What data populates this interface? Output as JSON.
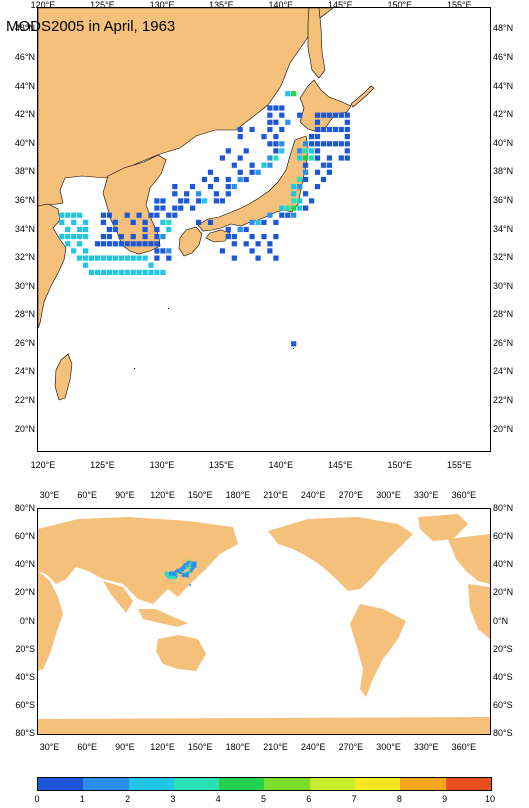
{
  "title": "MODS2005 in April, 1963",
  "colors": {
    "land": "#F5C07A",
    "ocean": "#FFFFFF",
    "palette": [
      "#1C57D8",
      "#2B8FF0",
      "#21C6E6",
      "#2BE0B8",
      "#22D24B",
      "#7CE02A",
      "#C8EA2C",
      "#F4E824",
      "#F6A523",
      "#E8501E"
    ]
  },
  "regional_map": {
    "lon_range": [
      119.5,
      157.5
    ],
    "lat_range": [
      18.5,
      49.5
    ],
    "lon_ticks": [
      "120°E",
      "125°E",
      "130°E",
      "135°E",
      "140°E",
      "145°E",
      "150°E",
      "155°E"
    ],
    "lat_ticks": [
      "20°N",
      "22°N",
      "24°N",
      "26°N",
      "28°N",
      "30°N",
      "32°N",
      "34°N",
      "36°N",
      "38°N",
      "40°N",
      "42°N",
      "44°N",
      "46°N",
      "48°N"
    ]
  },
  "global_map": {
    "lon_range": [
      20,
      380
    ],
    "lat_range": [
      -80,
      80
    ],
    "lon_ticks": [
      "30°E",
      "60°E",
      "90°E",
      "120°E",
      "150°E",
      "180°E",
      "210°E",
      "240°E",
      "270°E",
      "300°E",
      "330°E",
      "360°E"
    ],
    "lat_ticks": [
      "80°S",
      "60°S",
      "40°S",
      "20°S",
      "0°N",
      "20°N",
      "40°N",
      "60°N",
      "80°N"
    ]
  },
  "colorbar": {
    "labels": [
      "0",
      "1",
      "2",
      "3",
      "4",
      "5",
      "6",
      "7",
      "8",
      "9",
      "10"
    ]
  },
  "observation_cells": [
    {
      "lon": 140.5,
      "lat": 43.5,
      "level": 2
    },
    {
      "lon": 141,
      "lat": 43.5,
      "level": 4
    },
    {
      "lon": 139,
      "lat": 42.5,
      "level": 0
    },
    {
      "lon": 139.5,
      "lat": 42.5,
      "level": 0
    },
    {
      "lon": 140,
      "lat": 42.5,
      "level": 0
    },
    {
      "lon": 139,
      "lat": 42,
      "level": 0
    },
    {
      "lon": 140,
      "lat": 42,
      "level": 0
    },
    {
      "lon": 141.5,
      "lat": 42,
      "level": 0
    },
    {
      "lon": 139,
      "lat": 41.5,
      "level": 0
    },
    {
      "lon": 139.5,
      "lat": 41.5,
      "level": 0
    },
    {
      "lon": 140.5,
      "lat": 41.5,
      "level": 1
    },
    {
      "lon": 136.5,
      "lat": 41,
      "level": 0
    },
    {
      "lon": 137.5,
      "lat": 41,
      "level": 0
    },
    {
      "lon": 139,
      "lat": 41,
      "level": 0
    },
    {
      "lon": 140,
      "lat": 41,
      "level": 0
    },
    {
      "lon": 136.5,
      "lat": 40.5,
      "level": 0
    },
    {
      "lon": 138.5,
      "lat": 40.5,
      "level": 0
    },
    {
      "lon": 139.5,
      "lat": 40.5,
      "level": 0
    },
    {
      "lon": 139,
      "lat": 40,
      "level": 0
    },
    {
      "lon": 139.5,
      "lat": 40,
      "level": 0
    },
    {
      "lon": 140,
      "lat": 40,
      "level": 1
    },
    {
      "lon": 135.5,
      "lat": 39.5,
      "level": 0
    },
    {
      "lon": 137,
      "lat": 39.5,
      "level": 0
    },
    {
      "lon": 139.5,
      "lat": 39.5,
      "level": 0
    },
    {
      "lon": 140,
      "lat": 39.5,
      "level": 2
    },
    {
      "lon": 135,
      "lat": 39,
      "level": 0
    },
    {
      "lon": 136.5,
      "lat": 39,
      "level": 0
    },
    {
      "lon": 139,
      "lat": 39,
      "level": 1
    },
    {
      "lon": 139.5,
      "lat": 39,
      "level": 3
    },
    {
      "lon": 136,
      "lat": 38.5,
      "level": 0
    },
    {
      "lon": 137.5,
      "lat": 38.5,
      "level": 0
    },
    {
      "lon": 138.5,
      "lat": 38.5,
      "level": 2
    },
    {
      "lon": 139,
      "lat": 38.5,
      "level": 1
    },
    {
      "lon": 134,
      "lat": 38,
      "level": 0
    },
    {
      "lon": 136.5,
      "lat": 38,
      "level": 0
    },
    {
      "lon": 137.5,
      "lat": 38,
      "level": 0
    },
    {
      "lon": 138,
      "lat": 38,
      "level": 1
    },
    {
      "lon": 133.5,
      "lat": 37.5,
      "level": 0
    },
    {
      "lon": 134.5,
      "lat": 37.5,
      "level": 0
    },
    {
      "lon": 135.5,
      "lat": 37.5,
      "level": 0
    },
    {
      "lon": 136.5,
      "lat": 37.5,
      "level": 1
    },
    {
      "lon": 137,
      "lat": 37.5,
      "level": 0
    },
    {
      "lon": 131,
      "lat": 37,
      "level": 0
    },
    {
      "lon": 132.5,
      "lat": 37,
      "level": 0
    },
    {
      "lon": 134,
      "lat": 37,
      "level": 0
    },
    {
      "lon": 135.5,
      "lat": 37,
      "level": 0
    },
    {
      "lon": 136,
      "lat": 37,
      "level": 1
    },
    {
      "lon": 131,
      "lat": 36.5,
      "level": 0
    },
    {
      "lon": 132,
      "lat": 36.5,
      "level": 0
    },
    {
      "lon": 133,
      "lat": 36.5,
      "level": 1
    },
    {
      "lon": 134.5,
      "lat": 36.5,
      "level": 0
    },
    {
      "lon": 135.5,
      "lat": 36.5,
      "level": 0
    },
    {
      "lon": 129.5,
      "lat": 36,
      "level": 0
    },
    {
      "lon": 130,
      "lat": 36,
      "level": 0
    },
    {
      "lon": 131.5,
      "lat": 36,
      "level": 0
    },
    {
      "lon": 132,
      "lat": 36,
      "level": 0
    },
    {
      "lon": 133,
      "lat": 36,
      "level": 0
    },
    {
      "lon": 133.5,
      "lat": 36,
      "level": 2
    },
    {
      "lon": 134.5,
      "lat": 36,
      "level": 0
    },
    {
      "lon": 135,
      "lat": 36,
      "level": 0
    },
    {
      "lon": 129.5,
      "lat": 35.5,
      "level": 0
    },
    {
      "lon": 130,
      "lat": 35.5,
      "level": 0
    },
    {
      "lon": 131,
      "lat": 35.5,
      "level": 0
    },
    {
      "lon": 131.5,
      "lat": 35.5,
      "level": 0
    },
    {
      "lon": 132.5,
      "lat": 35.5,
      "level": 0
    },
    {
      "lon": 125,
      "lat": 35,
      "level": 0
    },
    {
      "lon": 125.5,
      "lat": 35,
      "level": 0
    },
    {
      "lon": 127,
      "lat": 35,
      "level": 0
    },
    {
      "lon": 128,
      "lat": 35,
      "level": 0
    },
    {
      "lon": 129,
      "lat": 35,
      "level": 0
    },
    {
      "lon": 129.5,
      "lat": 35,
      "level": 0
    },
    {
      "lon": 130.5,
      "lat": 35,
      "level": 0
    },
    {
      "lon": 131,
      "lat": 35,
      "level": 0
    },
    {
      "lon": 125,
      "lat": 34.5,
      "level": 0
    },
    {
      "lon": 126,
      "lat": 34.5,
      "level": 0
    },
    {
      "lon": 127.5,
      "lat": 34.5,
      "level": 0
    },
    {
      "lon": 128.5,
      "lat": 34.5,
      "level": 0
    },
    {
      "lon": 130,
      "lat": 34.5,
      "level": 2
    },
    {
      "lon": 130.5,
      "lat": 34.5,
      "level": 3
    },
    {
      "lon": 125.5,
      "lat": 34,
      "level": 0
    },
    {
      "lon": 126,
      "lat": 34,
      "level": 0
    },
    {
      "lon": 128.5,
      "lat": 34,
      "level": 0
    },
    {
      "lon": 129.5,
      "lat": 34,
      "level": 0
    },
    {
      "lon": 130.5,
      "lat": 34,
      "level": 2
    },
    {
      "lon": 125,
      "lat": 33.5,
      "level": 0
    },
    {
      "lon": 125.5,
      "lat": 33.5,
      "level": 0
    },
    {
      "lon": 126.5,
      "lat": 33.5,
      "level": 0
    },
    {
      "lon": 127.5,
      "lat": 33.5,
      "level": 0
    },
    {
      "lon": 128.5,
      "lat": 33.5,
      "level": 0
    },
    {
      "lon": 129.5,
      "lat": 33.5,
      "level": 0
    },
    {
      "lon": 130,
      "lat": 33.5,
      "level": 1
    },
    {
      "lon": 124.5,
      "lat": 33,
      "level": 0
    },
    {
      "lon": 125,
      "lat": 33,
      "level": 0
    },
    {
      "lon": 125.5,
      "lat": 33,
      "level": 0
    },
    {
      "lon": 126,
      "lat": 33,
      "level": 0
    },
    {
      "lon": 126.5,
      "lat": 33,
      "level": 0
    },
    {
      "lon": 127,
      "lat": 33,
      "level": 0
    },
    {
      "lon": 127.5,
      "lat": 33,
      "level": 0
    },
    {
      "lon": 128,
      "lat": 33,
      "level": 0
    },
    {
      "lon": 128.5,
      "lat": 33,
      "level": 0
    },
    {
      "lon": 129,
      "lat": 33,
      "level": 0
    },
    {
      "lon": 129.5,
      "lat": 33,
      "level": 0
    },
    {
      "lon": 129.5,
      "lat": 32.5,
      "level": 0
    },
    {
      "lon": 130,
      "lat": 32.5,
      "level": 0
    },
    {
      "lon": 130.5,
      "lat": 32.5,
      "level": 1
    },
    {
      "lon": 129.5,
      "lat": 32,
      "level": 0
    },
    {
      "lon": 130.5,
      "lat": 32,
      "level": 0
    },
    {
      "lon": 121.5,
      "lat": 35,
      "level": 2
    },
    {
      "lon": 122,
      "lat": 35,
      "level": 2
    },
    {
      "lon": 122.5,
      "lat": 35,
      "level": 2
    },
    {
      "lon": 123,
      "lat": 35,
      "level": 2
    },
    {
      "lon": 121.5,
      "lat": 34.5,
      "level": 2
    },
    {
      "lon": 122.5,
      "lat": 34.5,
      "level": 2
    },
    {
      "lon": 123.5,
      "lat": 34.5,
      "level": 2
    },
    {
      "lon": 122,
      "lat": 34,
      "level": 2
    },
    {
      "lon": 123,
      "lat": 34,
      "level": 2
    },
    {
      "lon": 123.5,
      "lat": 34,
      "level": 2
    },
    {
      "lon": 121.5,
      "lat": 33.5,
      "level": 2
    },
    {
      "lon": 122,
      "lat": 33.5,
      "level": 2
    },
    {
      "lon": 122.5,
      "lat": 33.5,
      "level": 2
    },
    {
      "lon": 123,
      "lat": 33.5,
      "level": 2
    },
    {
      "lon": 123.5,
      "lat": 33.5,
      "level": 2
    },
    {
      "lon": 122,
      "lat": 33,
      "level": 2
    },
    {
      "lon": 123,
      "lat": 33,
      "level": 2
    },
    {
      "lon": 122.5,
      "lat": 32.5,
      "level": 2
    },
    {
      "lon": 123.5,
      "lat": 32.5,
      "level": 2
    },
    {
      "lon": 123,
      "lat": 32,
      "level": 2
    },
    {
      "lon": 123.5,
      "lat": 32,
      "level": 2
    },
    {
      "lon": 124,
      "lat": 32,
      "level": 2
    },
    {
      "lon": 124.5,
      "lat": 32,
      "level": 2
    },
    {
      "lon": 125,
      "lat": 32,
      "level": 2
    },
    {
      "lon": 125.5,
      "lat": 32,
      "level": 2
    },
    {
      "lon": 126,
      "lat": 32,
      "level": 2
    },
    {
      "lon": 126.5,
      "lat": 32,
      "level": 2
    },
    {
      "lon": 127,
      "lat": 32,
      "level": 2
    },
    {
      "lon": 127.5,
      "lat": 32,
      "level": 2
    },
    {
      "lon": 128,
      "lat": 32,
      "level": 2
    },
    {
      "lon": 128.5,
      "lat": 32,
      "level": 2
    },
    {
      "lon": 123.5,
      "lat": 31.5,
      "level": 2
    },
    {
      "lon": 129,
      "lat": 31.5,
      "level": 2
    },
    {
      "lon": 124,
      "lat": 31,
      "level": 2
    },
    {
      "lon": 124.5,
      "lat": 31,
      "level": 2
    },
    {
      "lon": 125,
      "lat": 31,
      "level": 2
    },
    {
      "lon": 125.5,
      "lat": 31,
      "level": 2
    },
    {
      "lon": 126,
      "lat": 31,
      "level": 2
    },
    {
      "lon": 126.5,
      "lat": 31,
      "level": 2
    },
    {
      "lon": 127,
      "lat": 31,
      "level": 2
    },
    {
      "lon": 127.5,
      "lat": 31,
      "level": 2
    },
    {
      "lon": 128,
      "lat": 31,
      "level": 2
    },
    {
      "lon": 128.5,
      "lat": 31,
      "level": 2
    },
    {
      "lon": 129,
      "lat": 31,
      "level": 2
    },
    {
      "lon": 129.5,
      "lat": 31,
      "level": 2
    },
    {
      "lon": 130,
      "lat": 31,
      "level": 2
    },
    {
      "lon": 133,
      "lat": 34.5,
      "level": 0
    },
    {
      "lon": 134,
      "lat": 34.5,
      "level": 0
    },
    {
      "lon": 135.5,
      "lat": 34,
      "level": 0
    },
    {
      "lon": 136.5,
      "lat": 34,
      "level": 1
    },
    {
      "lon": 137,
      "lat": 34,
      "level": 0
    },
    {
      "lon": 135.5,
      "lat": 33.5,
      "level": 0
    },
    {
      "lon": 136,
      "lat": 33.5,
      "level": 0
    },
    {
      "lon": 137.5,
      "lat": 33.5,
      "level": 0
    },
    {
      "lon": 138.5,
      "lat": 33.5,
      "level": 0
    },
    {
      "lon": 139.5,
      "lat": 33.5,
      "level": 0
    },
    {
      "lon": 136,
      "lat": 33,
      "level": 0
    },
    {
      "lon": 137,
      "lat": 33,
      "level": 0
    },
    {
      "lon": 138,
      "lat": 33,
      "level": 0
    },
    {
      "lon": 139,
      "lat": 33,
      "level": 0
    },
    {
      "lon": 135,
      "lat": 32.5,
      "level": 0
    },
    {
      "lon": 137.5,
      "lat": 32.5,
      "level": 0
    },
    {
      "lon": 139,
      "lat": 32.5,
      "level": 0
    },
    {
      "lon": 136,
      "lat": 32,
      "level": 0
    },
    {
      "lon": 138,
      "lat": 32,
      "level": 0
    },
    {
      "lon": 139.5,
      "lat": 32,
      "level": 0
    },
    {
      "lon": 137.5,
      "lat": 34.5,
      "level": 1
    },
    {
      "lon": 138,
      "lat": 34.5,
      "level": 2
    },
    {
      "lon": 138.5,
      "lat": 34.5,
      "level": 0
    },
    {
      "lon": 139.5,
      "lat": 34.5,
      "level": 0
    },
    {
      "lon": 139,
      "lat": 35,
      "level": 1
    },
    {
      "lon": 140,
      "lat": 35,
      "level": 0
    },
    {
      "lon": 140.5,
      "lat": 35,
      "level": 0
    },
    {
      "lon": 141,
      "lat": 35,
      "level": 1
    },
    {
      "lon": 140,
      "lat": 35.5,
      "level": 2
    },
    {
      "lon": 140.5,
      "lat": 35.5,
      "level": 3
    },
    {
      "lon": 141,
      "lat": 35.5,
      "level": 4
    },
    {
      "lon": 141.5,
      "lat": 35.5,
      "level": 2
    },
    {
      "lon": 142,
      "lat": 35.5,
      "level": 0
    },
    {
      "lon": 141,
      "lat": 36,
      "level": 3
    },
    {
      "lon": 141.5,
      "lat": 36,
      "level": 2
    },
    {
      "lon": 142.5,
      "lat": 36,
      "level": 0
    },
    {
      "lon": 141,
      "lat": 36.5,
      "level": 2
    },
    {
      "lon": 142,
      "lat": 36.5,
      "level": 0
    },
    {
      "lon": 141,
      "lat": 37,
      "level": 2
    },
    {
      "lon": 141.5,
      "lat": 37,
      "level": 1
    },
    {
      "lon": 143,
      "lat": 37,
      "level": 0
    },
    {
      "lon": 141.5,
      "lat": 37.5,
      "level": 3
    },
    {
      "lon": 142,
      "lat": 37.5,
      "level": 0
    },
    {
      "lon": 143.5,
      "lat": 37.5,
      "level": 0
    },
    {
      "lon": 142,
      "lat": 38,
      "level": 1
    },
    {
      "lon": 143,
      "lat": 38,
      "level": 0
    },
    {
      "lon": 144,
      "lat": 38,
      "level": 0
    },
    {
      "lon": 142,
      "lat": 38.5,
      "level": 0
    },
    {
      "lon": 143.5,
      "lat": 38.5,
      "level": 0
    },
    {
      "lon": 144,
      "lat": 38.5,
      "level": 0
    },
    {
      "lon": 141.5,
      "lat": 39,
      "level": 2
    },
    {
      "lon": 142,
      "lat": 39,
      "level": 4
    },
    {
      "lon": 142.5,
      "lat": 39,
      "level": 3
    },
    {
      "lon": 143,
      "lat": 39,
      "level": 2
    },
    {
      "lon": 141.5,
      "lat": 39.5,
      "level": 1
    },
    {
      "lon": 142,
      "lat": 39.5,
      "level": 3
    },
    {
      "lon": 142.5,
      "lat": 39.5,
      "level": 2
    },
    {
      "lon": 142,
      "lat": 40,
      "level": 1
    },
    {
      "lon": 142.5,
      "lat": 40,
      "level": 0
    },
    {
      "lon": 142.5,
      "lat": 40.5,
      "level": 0
    },
    {
      "lon": 143,
      "lat": 42,
      "level": 0
    },
    {
      "lon": 143.5,
      "lat": 42,
      "level": 0
    },
    {
      "lon": 144,
      "lat": 42,
      "level": 0
    },
    {
      "lon": 144.5,
      "lat": 42,
      "level": 0
    },
    {
      "lon": 145,
      "lat": 42,
      "level": 0
    },
    {
      "lon": 145.5,
      "lat": 42,
      "level": 0
    },
    {
      "lon": 143,
      "lat": 41.5,
      "level": 0
    },
    {
      "lon": 145.5,
      "lat": 41.5,
      "level": 0
    },
    {
      "lon": 143,
      "lat": 41,
      "level": 0
    },
    {
      "lon": 143.5,
      "lat": 41,
      "level": 0
    },
    {
      "lon": 144,
      "lat": 41,
      "level": 0
    },
    {
      "lon": 144.5,
      "lat": 41,
      "level": 0
    },
    {
      "lon": 145,
      "lat": 41,
      "level": 0
    },
    {
      "lon": 145.5,
      "lat": 41,
      "level": 0
    },
    {
      "lon": 143,
      "lat": 40.5,
      "level": 0
    },
    {
      "lon": 145.5,
      "lat": 40.5,
      "level": 0
    },
    {
      "lon": 143,
      "lat": 40,
      "level": 0
    },
    {
      "lon": 143.5,
      "lat": 40,
      "level": 0
    },
    {
      "lon": 144,
      "lat": 40,
      "level": 0
    },
    {
      "lon": 144.5,
      "lat": 40,
      "level": 0
    },
    {
      "lon": 145,
      "lat": 40,
      "level": 0
    },
    {
      "lon": 145.5,
      "lat": 40,
      "level": 0
    },
    {
      "lon": 143,
      "lat": 39.5,
      "level": 0
    },
    {
      "lon": 145.5,
      "lat": 39.5,
      "level": 0
    },
    {
      "lon": 143,
      "lat": 39,
      "level": 0
    },
    {
      "lon": 144,
      "lat": 39,
      "level": 0
    },
    {
      "lon": 145,
      "lat": 39,
      "level": 0
    },
    {
      "lon": 145.5,
      "lat": 39,
      "level": 0
    },
    {
      "lon": 141,
      "lat": 26,
      "level": 0
    }
  ]
}
